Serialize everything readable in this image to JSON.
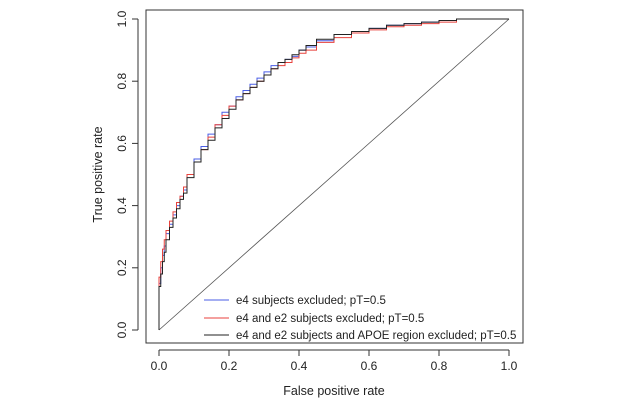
{
  "chart_data": {
    "type": "line",
    "title": "",
    "xlabel": "False positive rate",
    "ylabel": "True positive rate",
    "xlim": [
      0,
      1
    ],
    "ylim": [
      0,
      1
    ],
    "xticks": [
      "0.0",
      "0.2",
      "0.4",
      "0.6",
      "0.8",
      "1.0"
    ],
    "yticks": [
      "0.0",
      "0.2",
      "0.4",
      "0.6",
      "0.8",
      "1.0"
    ],
    "grid": false,
    "legend_position": "bottom-right",
    "reference_line": {
      "x": [
        0,
        1
      ],
      "y": [
        0,
        1
      ],
      "color": "#555555"
    },
    "series": [
      {
        "name": "e4 subjects excluded; pT=0.5",
        "color": "#4a5ee6",
        "x": [
          0.0,
          0.0,
          0.005,
          0.01,
          0.015,
          0.02,
          0.03,
          0.04,
          0.05,
          0.06,
          0.07,
          0.08,
          0.1,
          0.12,
          0.14,
          0.16,
          0.18,
          0.2,
          0.22,
          0.24,
          0.26,
          0.28,
          0.3,
          0.32,
          0.34,
          0.36,
          0.38,
          0.4,
          0.42,
          0.45,
          0.5,
          0.55,
          0.6,
          0.65,
          0.7,
          0.75,
          0.8,
          0.85,
          0.9,
          0.95,
          1.0
        ],
        "y": [
          0.0,
          0.1,
          0.15,
          0.2,
          0.24,
          0.27,
          0.31,
          0.34,
          0.37,
          0.4,
          0.43,
          0.45,
          0.5,
          0.55,
          0.59,
          0.63,
          0.66,
          0.7,
          0.72,
          0.75,
          0.77,
          0.79,
          0.81,
          0.83,
          0.85,
          0.86,
          0.87,
          0.88,
          0.9,
          0.91,
          0.93,
          0.95,
          0.96,
          0.97,
          0.98,
          0.985,
          0.99,
          0.995,
          1.0,
          1.0,
          1.0
        ]
      },
      {
        "name": "e4 and e2 subjects excluded; pT=0.5",
        "color": "#e8423c",
        "x": [
          0.0,
          0.0,
          0.005,
          0.01,
          0.015,
          0.02,
          0.03,
          0.04,
          0.05,
          0.06,
          0.07,
          0.08,
          0.1,
          0.12,
          0.14,
          0.16,
          0.18,
          0.2,
          0.22,
          0.24,
          0.26,
          0.28,
          0.3,
          0.32,
          0.34,
          0.36,
          0.38,
          0.4,
          0.42,
          0.45,
          0.5,
          0.55,
          0.6,
          0.65,
          0.7,
          0.75,
          0.8,
          0.85,
          0.9,
          0.95,
          1.0
        ],
        "y": [
          0.0,
          0.12,
          0.17,
          0.22,
          0.26,
          0.29,
          0.32,
          0.35,
          0.38,
          0.41,
          0.43,
          0.46,
          0.5,
          0.54,
          0.58,
          0.62,
          0.66,
          0.69,
          0.72,
          0.74,
          0.76,
          0.78,
          0.8,
          0.82,
          0.84,
          0.85,
          0.86,
          0.875,
          0.89,
          0.9,
          0.925,
          0.94,
          0.955,
          0.965,
          0.975,
          0.98,
          0.985,
          0.99,
          1.0,
          1.0,
          1.0
        ]
      },
      {
        "name": "e4 and e2 subjects and APOE region excluded; pT=0.5",
        "color": "#222222",
        "x": [
          0.0,
          0.0,
          0.005,
          0.01,
          0.015,
          0.02,
          0.03,
          0.04,
          0.05,
          0.06,
          0.07,
          0.08,
          0.1,
          0.12,
          0.14,
          0.16,
          0.18,
          0.2,
          0.22,
          0.24,
          0.26,
          0.28,
          0.3,
          0.32,
          0.34,
          0.36,
          0.38,
          0.4,
          0.42,
          0.45,
          0.5,
          0.55,
          0.6,
          0.65,
          0.7,
          0.75,
          0.8,
          0.85,
          0.9,
          0.95,
          1.0
        ],
        "y": [
          0.0,
          0.09,
          0.14,
          0.18,
          0.22,
          0.25,
          0.29,
          0.33,
          0.36,
          0.39,
          0.42,
          0.44,
          0.49,
          0.54,
          0.58,
          0.61,
          0.65,
          0.68,
          0.71,
          0.74,
          0.76,
          0.78,
          0.8,
          0.82,
          0.84,
          0.86,
          0.87,
          0.885,
          0.9,
          0.915,
          0.935,
          0.95,
          0.96,
          0.97,
          0.98,
          0.985,
          0.99,
          0.995,
          1.0,
          1.0,
          1.0
        ]
      }
    ]
  }
}
